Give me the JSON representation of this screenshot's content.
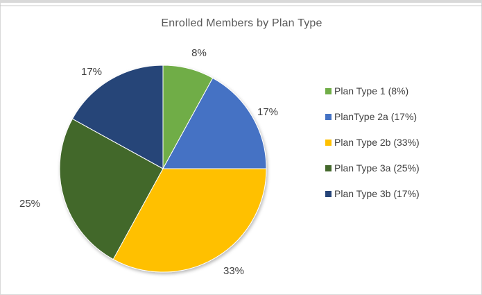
{
  "chart_data": {
    "type": "pie",
    "title": "Enrolled Members by Plan Type",
    "categories": [
      "Plan Type 1",
      "PlanType 2a",
      "Plan Type 2b",
      "Plan Type 3a",
      "Plan Type 3b"
    ],
    "values": [
      8,
      17,
      33,
      25,
      17
    ],
    "units": "%",
    "data_labels": [
      "8%",
      "17%",
      "33%",
      "25%",
      "17%"
    ],
    "legend_labels": [
      "Plan Type 1 (8%)",
      "PlanType 2a (17%)",
      "Plan Type 2b (33%)",
      "Plan Type 3a (25%)",
      "Plan Type 3b (17%)"
    ],
    "colors": [
      "#70ad47",
      "#4472c4",
      "#ffc000",
      "#43682b",
      "#264478"
    ],
    "legend_position": "right",
    "start_angle": "12 o'clock, clockwise"
  }
}
